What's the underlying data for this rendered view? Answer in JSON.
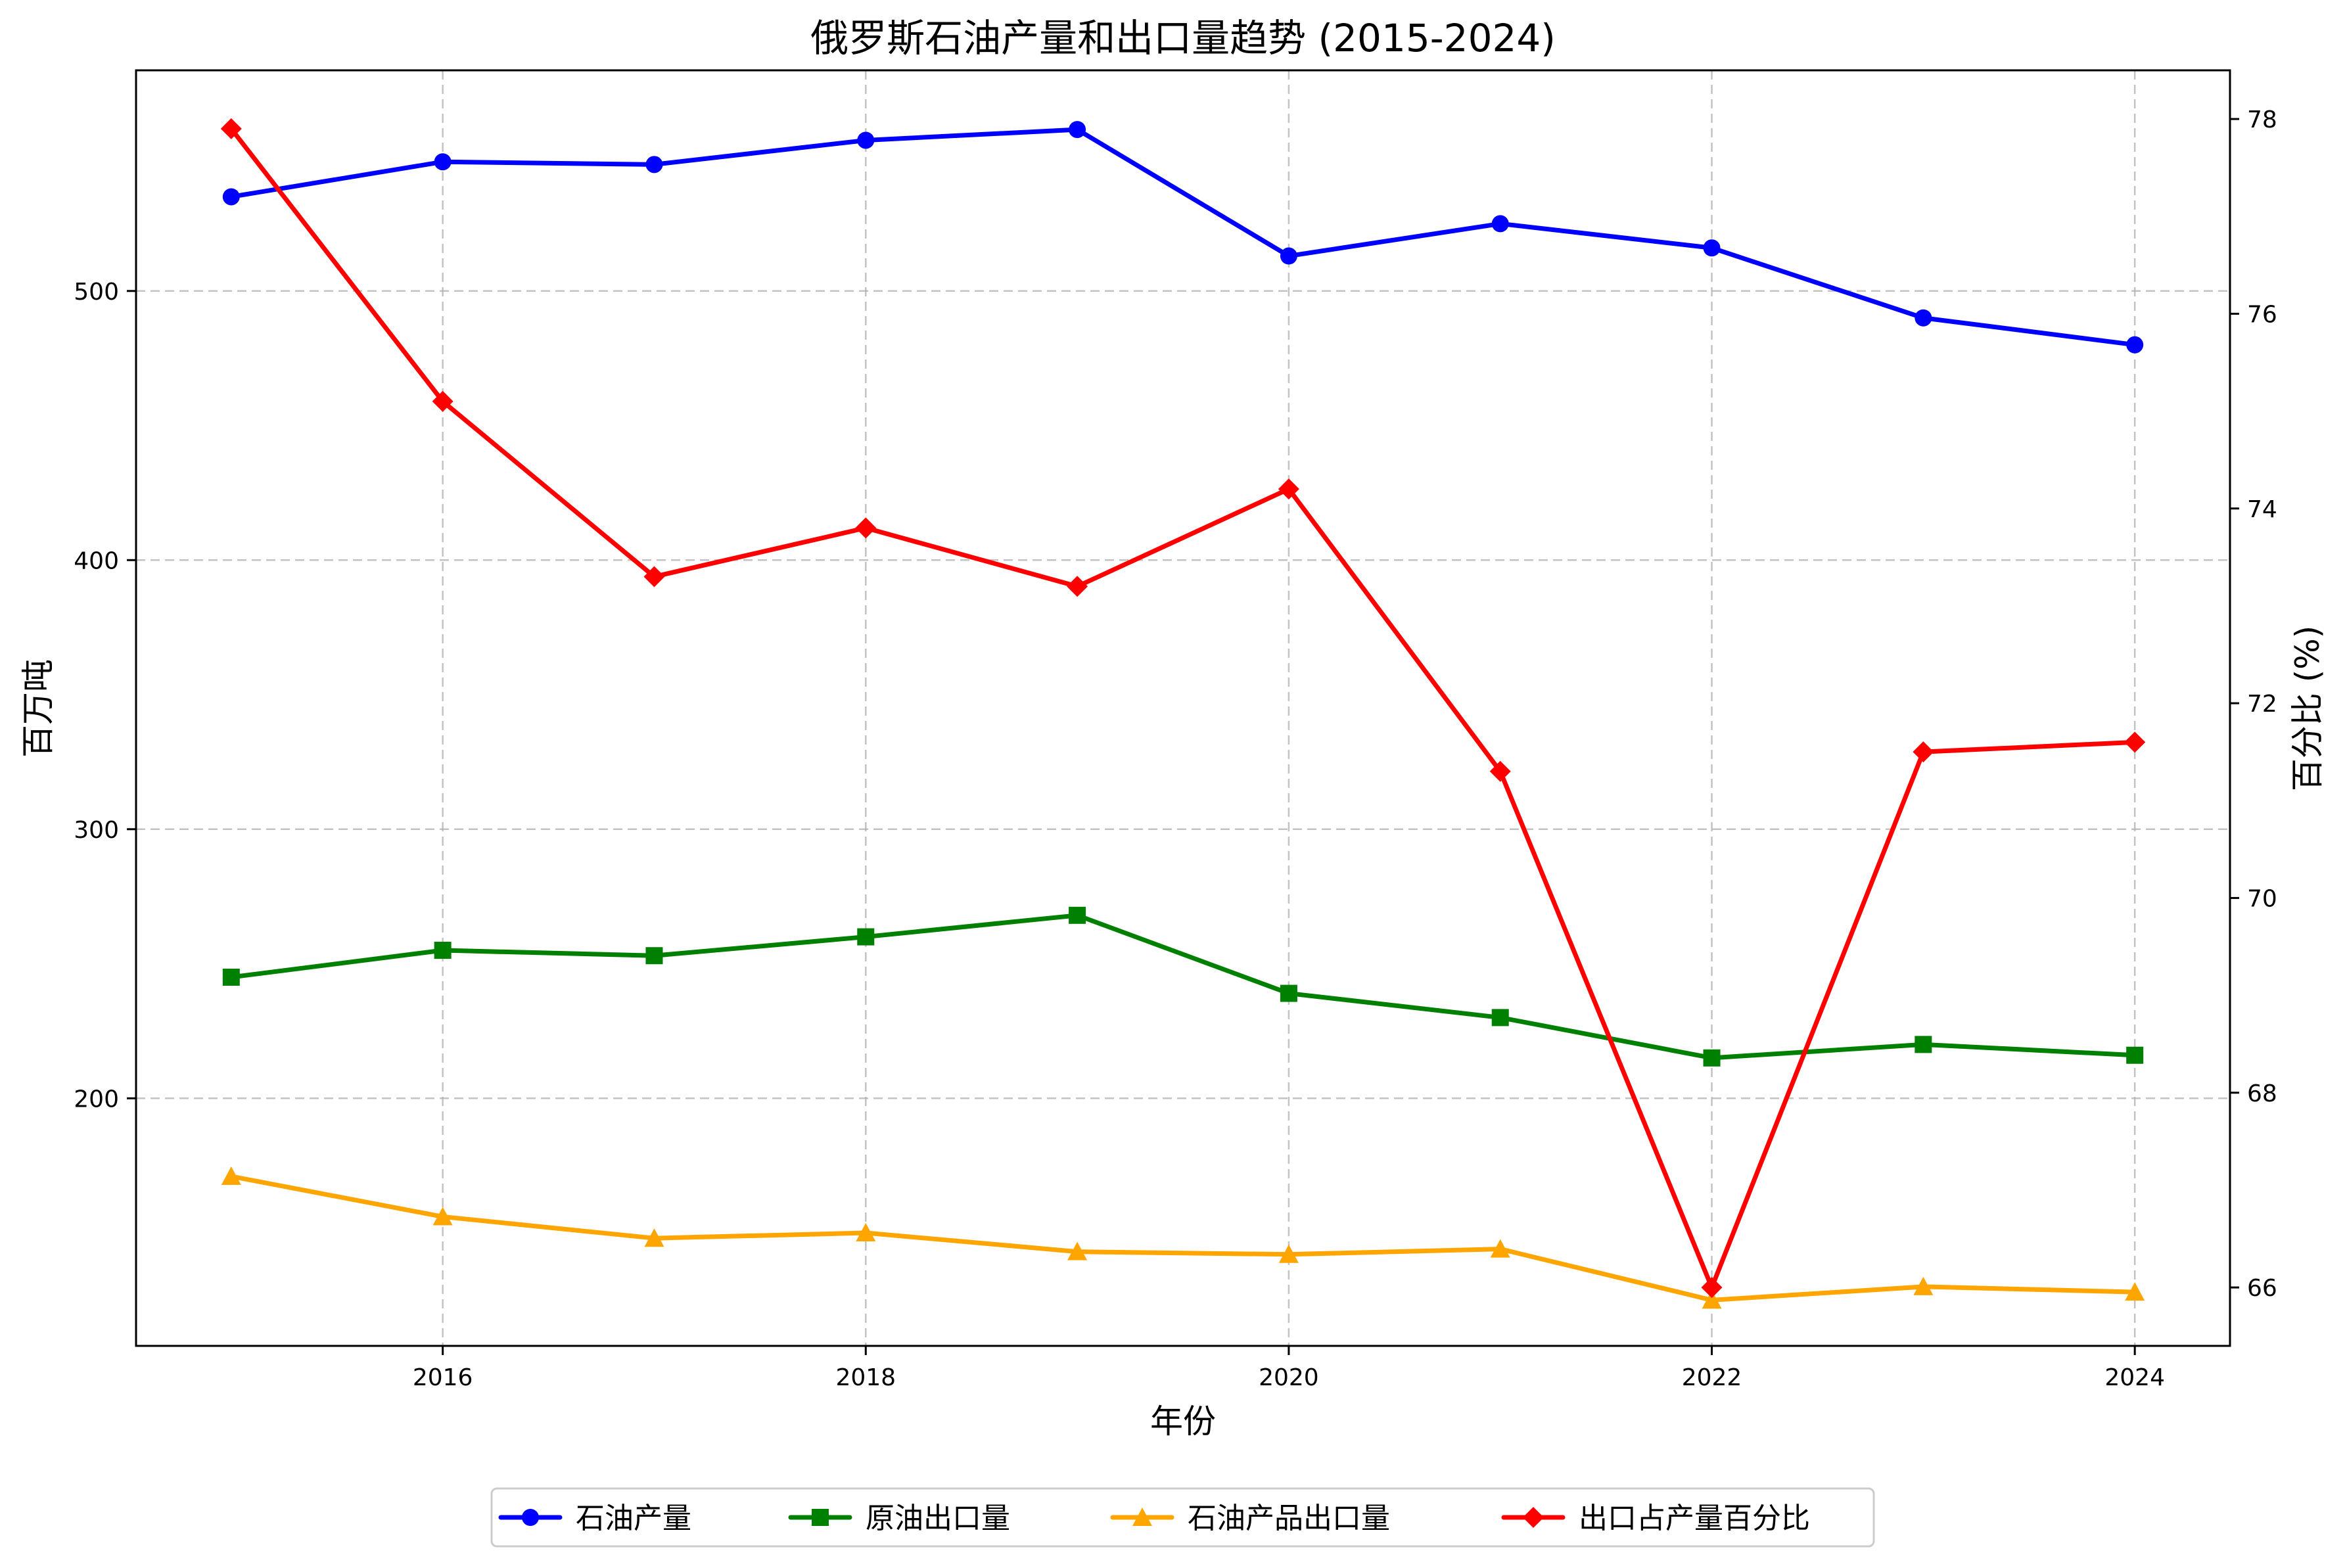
{
  "chart_data": {
    "type": "line",
    "title": "俄罗斯石油产量和出口量趋势 (2015-2024)",
    "xlabel": "年份",
    "ylabel_left": "百万吨",
    "ylabel_right": "百分比 (%)",
    "x": [
      2015,
      2016,
      2017,
      2018,
      2019,
      2020,
      2021,
      2022,
      2023,
      2024
    ],
    "x_ticks": [
      2016,
      2018,
      2020,
      2022,
      2024
    ],
    "xlim": [
      2014.55,
      2024.45
    ],
    "ylim_left": [
      108,
      582
    ],
    "yticks_left": [
      200,
      300,
      400,
      500
    ],
    "ylim_right": [
      65.4,
      78.5
    ],
    "yticks_right": [
      66,
      68,
      70,
      72,
      74,
      76,
      78
    ],
    "grid": true,
    "legend_position": "bottom-center",
    "series": [
      {
        "name": "石油产量",
        "axis": "left",
        "color": "#0000ff",
        "marker": "circle",
        "values": [
          535,
          548,
          547,
          556,
          560,
          513,
          525,
          516,
          490,
          480
        ]
      },
      {
        "name": "原油出口量",
        "axis": "left",
        "color": "#008000",
        "marker": "square",
        "values": [
          245,
          255,
          253,
          260,
          268,
          239,
          230,
          215,
          220,
          216
        ]
      },
      {
        "name": "石油产品出口量",
        "axis": "left",
        "color": "#ffa500",
        "marker": "triangle",
        "values": [
          171,
          156,
          148,
          150,
          143,
          142,
          144,
          125,
          130,
          128
        ]
      },
      {
        "name": "出口占产量百分比",
        "axis": "right",
        "color": "#ff0000",
        "marker": "diamond",
        "values": [
          77.9,
          75.1,
          73.3,
          73.8,
          73.2,
          74.2,
          71.3,
          66.0,
          71.5,
          71.6
        ]
      }
    ]
  }
}
